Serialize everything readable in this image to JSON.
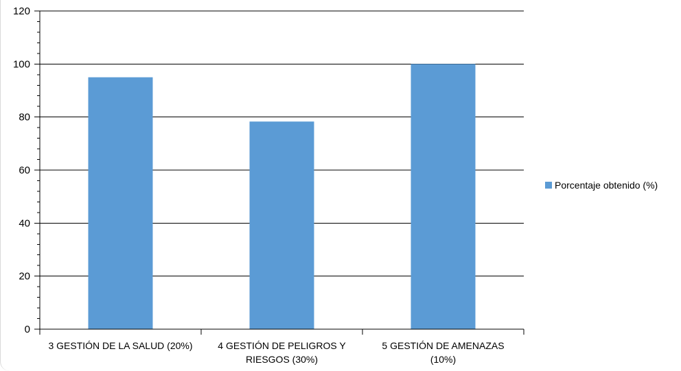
{
  "chart_data": {
    "type": "bar",
    "categories": [
      [
        "3 GESTIÓN DE LA SALUD (20%)"
      ],
      [
        "4 GESTIÓN DE PELIGROS Y",
        "RIESGOS (30%)"
      ],
      [
        "5 GESTIÓN DE AMENAZAS",
        "(10%)"
      ]
    ],
    "series": [
      {
        "name": "Porcentaje obtenido (%)",
        "values": [
          95,
          78.3,
          100
        ],
        "color": "#5b9bd5"
      }
    ],
    "ylim": [
      0,
      120
    ],
    "yticks": [
      0,
      20,
      40,
      60,
      80,
      100,
      120
    ],
    "grid": true,
    "legend_position": "right",
    "title": "",
    "xlabel": "",
    "ylabel": ""
  }
}
